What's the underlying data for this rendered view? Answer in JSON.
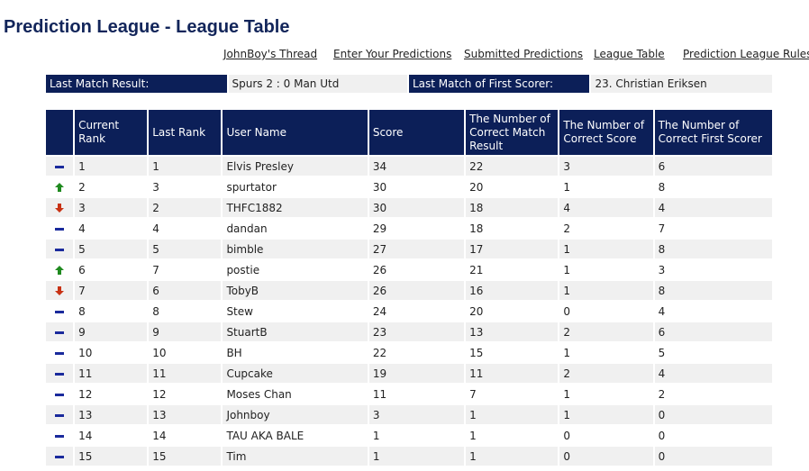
{
  "page": {
    "title": "Prediction League - League Table"
  },
  "nav": {
    "links": [
      {
        "label": "JohnBoy's Thread"
      },
      {
        "label": "Enter Your Predictions"
      },
      {
        "label": "Submitted Predictions"
      },
      {
        "label": "League Table"
      },
      {
        "label": "Prediction League Rules"
      }
    ]
  },
  "last_match": {
    "result_label": "Last Match Result:",
    "result_value": "Spurs 2 : 0 Man Utd",
    "scorer_label": "Last Match of First Scorer:",
    "scorer_value": "23. Christian Eriksen"
  },
  "colors": {
    "header_bg": "#0c1f58",
    "up": "#1f8a1f",
    "down": "#c83214",
    "same": "#1a2a9c"
  },
  "table": {
    "headers": [
      "",
      "Current Rank",
      "Last Rank",
      "User Name",
      "Score",
      "The Number of Correct Match Result",
      "The Number of Correct Score",
      "The Number of Correct First Scorer"
    ],
    "rows": [
      {
        "movement": "same",
        "current_rank": "1",
        "last_rank": "1",
        "user": "Elvis Presley",
        "score": "34",
        "correct_result": "22",
        "correct_score": "3",
        "correct_scorer": "6"
      },
      {
        "movement": "up",
        "current_rank": "2",
        "last_rank": "3",
        "user": "spurtator",
        "score": "30",
        "correct_result": "20",
        "correct_score": "1",
        "correct_scorer": "8"
      },
      {
        "movement": "down",
        "current_rank": "3",
        "last_rank": "2",
        "user": "THFC1882",
        "score": "30",
        "correct_result": "18",
        "correct_score": "4",
        "correct_scorer": "4"
      },
      {
        "movement": "same",
        "current_rank": "4",
        "last_rank": "4",
        "user": "dandan",
        "score": "29",
        "correct_result": "18",
        "correct_score": "2",
        "correct_scorer": "7"
      },
      {
        "movement": "same",
        "current_rank": "5",
        "last_rank": "5",
        "user": "bimble",
        "score": "27",
        "correct_result": "17",
        "correct_score": "1",
        "correct_scorer": "8"
      },
      {
        "movement": "up",
        "current_rank": "6",
        "last_rank": "7",
        "user": "postie",
        "score": "26",
        "correct_result": "21",
        "correct_score": "1",
        "correct_scorer": "3"
      },
      {
        "movement": "down",
        "current_rank": "7",
        "last_rank": "6",
        "user": "TobyB",
        "score": "26",
        "correct_result": "16",
        "correct_score": "1",
        "correct_scorer": "8"
      },
      {
        "movement": "same",
        "current_rank": "8",
        "last_rank": "8",
        "user": "Stew",
        "score": "24",
        "correct_result": "20",
        "correct_score": "0",
        "correct_scorer": "4"
      },
      {
        "movement": "same",
        "current_rank": "9",
        "last_rank": "9",
        "user": "StuartB",
        "score": "23",
        "correct_result": "13",
        "correct_score": "2",
        "correct_scorer": "6"
      },
      {
        "movement": "same",
        "current_rank": "10",
        "last_rank": "10",
        "user": "BH",
        "score": "22",
        "correct_result": "15",
        "correct_score": "1",
        "correct_scorer": "5"
      },
      {
        "movement": "same",
        "current_rank": "11",
        "last_rank": "11",
        "user": "Cupcake",
        "score": "19",
        "correct_result": "11",
        "correct_score": "2",
        "correct_scorer": "4"
      },
      {
        "movement": "same",
        "current_rank": "12",
        "last_rank": "12",
        "user": "Moses Chan",
        "score": "11",
        "correct_result": "7",
        "correct_score": "1",
        "correct_scorer": "2"
      },
      {
        "movement": "same",
        "current_rank": "13",
        "last_rank": "13",
        "user": "Johnboy",
        "score": "3",
        "correct_result": "1",
        "correct_score": "1",
        "correct_scorer": "0"
      },
      {
        "movement": "same",
        "current_rank": "14",
        "last_rank": "14",
        "user": "TAU AKA BALE",
        "score": "1",
        "correct_result": "1",
        "correct_score": "0",
        "correct_scorer": "0"
      },
      {
        "movement": "same",
        "current_rank": "15",
        "last_rank": "15",
        "user": "Tim",
        "score": "1",
        "correct_result": "1",
        "correct_score": "0",
        "correct_scorer": "0"
      }
    ]
  }
}
